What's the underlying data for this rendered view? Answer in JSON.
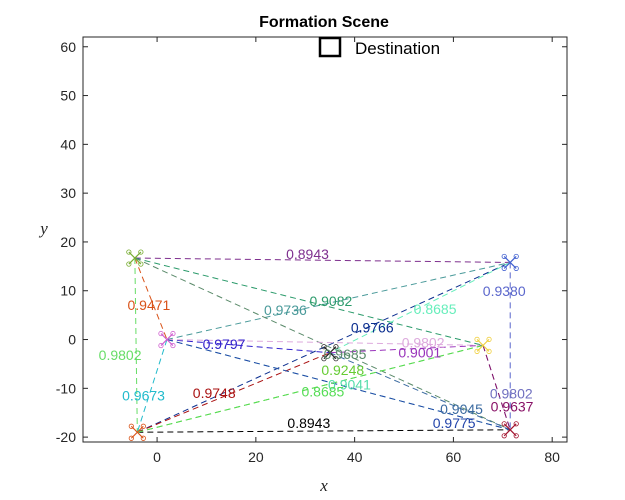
{
  "chart_data": {
    "type": "scatter",
    "title": "Formation Scene",
    "xlabel": "x",
    "ylabel": "y",
    "xlim": [
      -15,
      83
    ],
    "ylim": [
      -21,
      62
    ],
    "xticks": [
      0,
      20,
      40,
      60,
      80
    ],
    "yticks": [
      -20,
      -10,
      0,
      10,
      20,
      30,
      40,
      50,
      60
    ],
    "grid": false,
    "legend": {
      "position": "top",
      "entries": [
        {
          "label": "Destination",
          "marker": "square"
        }
      ]
    },
    "nodes": [
      {
        "x": -4.5,
        "y": 16.7,
        "color": "#77ac30"
      },
      {
        "x": 71.5,
        "y": 15.8,
        "color": "#4060d0"
      },
      {
        "x": 2,
        "y": 0,
        "color": "#d060d0"
      },
      {
        "x": 35,
        "y": -2.7,
        "color": "#222222"
      },
      {
        "x": 66,
        "y": -1.2,
        "color": "#f0d040"
      },
      {
        "x": -4,
        "y": -19,
        "color": "#d95319"
      },
      {
        "x": 71.5,
        "y": -18.5,
        "color": "#a2142f"
      }
    ],
    "edges": [
      {
        "from": 0,
        "to": 1,
        "label": "0.8943",
        "color": "#7e2f8e"
      },
      {
        "from": 5,
        "to": 6,
        "label": "0.8943",
        "color": "#000000"
      },
      {
        "from": 0,
        "to": 2,
        "label": "0.9471",
        "color": "#d95319"
      },
      {
        "from": 0,
        "to": 5,
        "label": "0.9802",
        "color": "#66dd66"
      },
      {
        "from": 2,
        "to": 5,
        "label": "0.9673",
        "color": "#22bbcc"
      },
      {
        "from": 2,
        "to": 1,
        "label": "0.9736",
        "color": "#4a9a9a"
      },
      {
        "from": 5,
        "to": 1,
        "label": "0.9766",
        "color": "#0b2e8f"
      },
      {
        "from": 1,
        "to": 6,
        "label": "0.9380",
        "color": "#5a66cc"
      },
      {
        "from": 4,
        "to": 6,
        "label": "0.9802",
        "color": "#7070c0"
      },
      {
        "from": 0,
        "to": 4,
        "label": "0.9082",
        "color": "#2a9a6a"
      },
      {
        "from": 0,
        "to": 6,
        "label": "0.9685",
        "color": "#5a8a6a"
      },
      {
        "from": 1,
        "to": 3,
        "label": "0.8685",
        "color": "#66eebb"
      },
      {
        "from": 2,
        "to": 6,
        "label": "0.9041",
        "color": "#55ddaa"
      },
      {
        "from": 2,
        "to": 3,
        "label": "0.9797",
        "color": "#3322cc"
      },
      {
        "from": 5,
        "to": 4,
        "label": "0.9248",
        "color": "#66cc33"
      },
      {
        "from": 2,
        "to": 4,
        "label": "0.9802",
        "color": "#ddaadd"
      },
      {
        "from": 5,
        "to": 3,
        "label": "0.9748",
        "color": "#aa1111"
      },
      {
        "from": 3,
        "to": 4,
        "label": "0.9001",
        "color": "#9933bb"
      },
      {
        "from": 3,
        "to": 6,
        "label": "0.9045",
        "color": "#3a6aa0"
      },
      {
        "from": 2,
        "to": 6,
        "label": "0.9775",
        "color": "#2244aa"
      },
      {
        "from": 4,
        "to": 6,
        "label": "0.9637",
        "color": "#881166"
      },
      {
        "from": 5,
        "to": 4,
        "label": "0.8685",
        "color": "#55dd55"
      }
    ]
  }
}
